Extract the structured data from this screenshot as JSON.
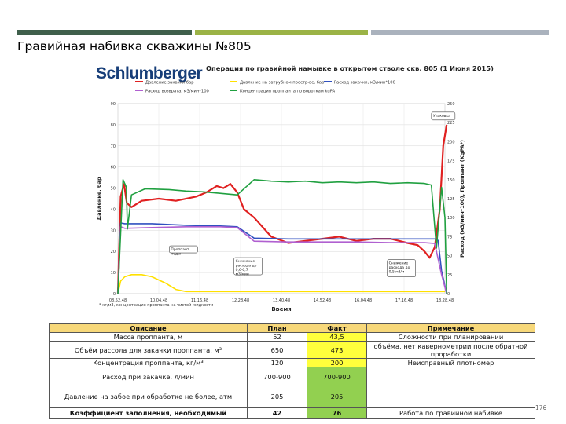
{
  "slide": {
    "title": "Гравийная набивка скважины №805",
    "page_number": "176",
    "top_bar_colors": [
      "#3f5f4b",
      "#9bb346",
      "#aab2bd"
    ]
  },
  "brand": {
    "logo_text": "Schlumberger",
    "logo_color": "#173e79"
  },
  "chart_data": {
    "type": "line",
    "title": "Операция по гравийной намывке в открытом стволе скв. 805 (1 Июня 2015)",
    "xlabel": "Время",
    "ylabel_left": "Давление, бар",
    "ylabel_right": "Расход (м3/мин*100), Проппант (KgPA*)",
    "x_ticks": [
      "08.52.48",
      "10.04.48",
      "11.16.48",
      "12.28.48",
      "13.40.48",
      "14.52.48",
      "16.04.48",
      "17.16.48",
      "18.28.48"
    ],
    "y_left": {
      "ticks": [
        0,
        10,
        20,
        30,
        40,
        50,
        60,
        70,
        80,
        90
      ],
      "ylim": [
        0,
        90
      ]
    },
    "y_right": {
      "ticks": [
        0,
        25,
        50,
        75,
        100,
        125,
        150,
        175,
        200,
        225,
        250
      ],
      "ylim": [
        0,
        250
      ]
    },
    "grid": true,
    "legend_position": "top",
    "footnote": "*-кг/м3, концентрация проппанта на чистой жидкости",
    "series": [
      {
        "name": "Давление закачки бар",
        "color": "#e02020",
        "axis": "left",
        "x": [
          0,
          0.08,
          0.18,
          0.26,
          0.4,
          0.7,
          1.2,
          1.7,
          2.3,
          2.6,
          2.9,
          3.1,
          3.3,
          3.5,
          3.7,
          4.0,
          4.5,
          5.0,
          5.5,
          6.0,
          6.5,
          7.0,
          7.5,
          8.0,
          8.5,
          8.8,
          9.0,
          9.15,
          9.3,
          9.45,
          9.55,
          9.65
        ],
        "y": [
          0,
          46,
          52,
          43,
          41,
          44,
          45,
          44,
          46,
          48,
          51,
          50,
          52,
          48,
          40,
          36,
          27,
          24,
          25,
          26,
          27,
          25,
          26,
          26,
          24,
          23,
          20,
          17,
          22,
          40,
          70,
          80
        ]
      },
      {
        "name": "Давление на затрубном простр-ве, бар",
        "color": "#ffe000",
        "axis": "left",
        "x": [
          0,
          0.08,
          0.2,
          0.4,
          0.7,
          1.0,
          1.4,
          1.7,
          2.0,
          2.5,
          3.0,
          4.0,
          5.0,
          6.0,
          7.0,
          8.0,
          9.0,
          9.6
        ],
        "y": [
          0,
          6,
          8,
          9,
          9,
          8,
          5,
          2,
          1,
          1,
          1,
          1,
          1,
          1,
          1,
          1,
          1,
          1
        ]
      },
      {
        "name": "Расход закачки, м3/мин*100",
        "color": "#3050c0",
        "axis": "right",
        "x": [
          0,
          0.08,
          0.2,
          1.0,
          2.0,
          3.0,
          3.5,
          4.0,
          5.0,
          6.0,
          7.0,
          8.0,
          8.5,
          9.0,
          9.3,
          9.4,
          9.5,
          9.65
        ],
        "y": [
          0,
          93,
          92,
          92,
          90,
          89,
          88,
          73,
          72,
          72,
          72,
          72,
          72,
          72,
          72,
          70,
          30,
          0
        ]
      },
      {
        "name": "Расход возврата, м3/мин*100",
        "color": "#b060d0",
        "axis": "right",
        "x": [
          0,
          0.08,
          0.2,
          1.0,
          2.0,
          3.0,
          3.5,
          4.0,
          5.0,
          6.0,
          7.0,
          8.0,
          9.0,
          9.3,
          9.5,
          9.65
        ],
        "y": [
          0,
          88,
          86,
          87,
          88,
          88,
          87,
          69,
          68,
          68,
          68,
          67,
          67,
          66,
          25,
          0
        ]
      },
      {
        "name": "Концентрация проппанта по вороткам kgPA",
        "color": "#20a040",
        "axis": "right",
        "x": [
          0,
          0.08,
          0.15,
          0.25,
          0.28,
          0.4,
          0.8,
          1.5,
          2.0,
          2.5,
          3.0,
          3.5,
          4.0,
          4.5,
          5.0,
          5.5,
          6.0,
          6.5,
          7.0,
          7.5,
          8.0,
          8.5,
          9.0,
          9.2,
          9.35,
          9.5,
          9.6,
          9.65
        ],
        "y": [
          0,
          80,
          150,
          140,
          85,
          130,
          138,
          137,
          135,
          134,
          132,
          130,
          150,
          148,
          147,
          148,
          146,
          147,
          146,
          147,
          145,
          146,
          145,
          143,
          60,
          140,
          100,
          0
        ]
      }
    ],
    "annotations": [
      {
        "text": "Упаковка",
        "x": 9.55,
        "y": 83,
        "axis": "left"
      },
      {
        "text": "Проппант подан",
        "x": 1.6,
        "y": 21,
        "axis": "left"
      },
      {
        "text": "Снижение расхода до 0,6-0,7 м3/мин",
        "x": 3.5,
        "y": 13,
        "axis": "left"
      },
      {
        "text": "Снижение расхода до 0,5 м3/м",
        "x": 8.0,
        "y": 12,
        "axis": "left"
      }
    ]
  },
  "table": {
    "headers": [
      "Описание",
      "План",
      "Факт",
      "Примечание"
    ],
    "rows": [
      [
        "Масса проппанта, м",
        "52",
        "43,5",
        "Сложности при планировании"
      ],
      [
        "Объём рассола для закачки проппанта, м³",
        "650",
        "473",
        "объёма, нет кавернометрии после обратной проработки"
      ],
      [
        "Концентрация проппанта, кг/м³",
        "120",
        "200",
        "Неисправный плотномер"
      ],
      [
        "Расход при закачке, л/мин",
        "700-900",
        "700-900",
        ""
      ],
      [
        "Давление на забое при обработке не более, атм",
        "205",
        "205",
        ""
      ],
      [
        "Коэффициент заполнения, необходимый",
        "42",
        "76",
        "Работа по гравийной набивке"
      ]
    ],
    "fact_colors": [
      "yellow",
      "yellow",
      "yellow",
      "green",
      "green",
      "green"
    ]
  }
}
